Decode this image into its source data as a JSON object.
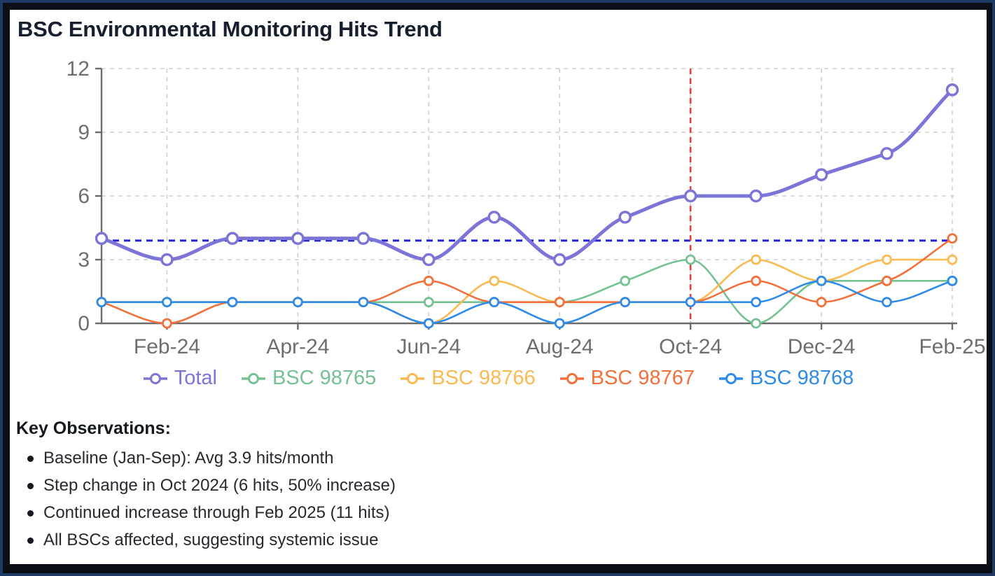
{
  "title": "BSC Environmental Monitoring Hits Trend",
  "frame_colors": {
    "outer_border": "#1f3a63",
    "inner_band": "#0a0e16",
    "card_background": "#ffffff"
  },
  "chart_data": {
    "type": "line",
    "title": "BSC Environmental Monitoring Hits Trend",
    "x": [
      "Jan-24",
      "Feb-24",
      "Mar-24",
      "Apr-24",
      "May-24",
      "Jun-24",
      "Jul-24",
      "Aug-24",
      "Sep-24",
      "Oct-24",
      "Nov-24",
      "Dec-24",
      "Jan-25",
      "Feb-25"
    ],
    "x_tick_labels": [
      "Feb-24",
      "Apr-24",
      "Jun-24",
      "Aug-24",
      "Oct-24",
      "Dec-24",
      "Feb-25"
    ],
    "ylim": [
      0,
      12
    ],
    "yticks": [
      0,
      3,
      6,
      9,
      12
    ],
    "grid": true,
    "legend_position": "bottom",
    "curve": "monotone-smooth",
    "axis_color": "#6b6b6b",
    "tick_label_color": "#6e6e6e",
    "gridline_color": "#cfcfcf",
    "series": [
      {
        "name": "Total",
        "color": "#7c74d6",
        "line_width": 5,
        "marker_radius": 7.5,
        "marker_stroke": 3.5,
        "values": [
          4,
          3,
          4,
          4,
          4,
          3,
          5,
          3,
          5,
          6,
          6,
          7,
          8,
          11
        ]
      },
      {
        "name": "BSC 98765",
        "color": "#74c193",
        "line_width": 2.6,
        "marker_radius": 6,
        "marker_stroke": 2.8,
        "values": [
          1,
          1,
          1,
          1,
          1,
          1,
          1,
          1,
          2,
          3,
          0,
          2,
          2,
          2
        ]
      },
      {
        "name": "BSC 98766",
        "color": "#fbb952",
        "line_width": 2.6,
        "marker_radius": 6,
        "marker_stroke": 2.8,
        "values": [
          1,
          1,
          1,
          1,
          1,
          0,
          2,
          1,
          1,
          1,
          3,
          2,
          3,
          3
        ]
      },
      {
        "name": "BSC 98767",
        "color": "#f3703b",
        "line_width": 2.6,
        "marker_radius": 6,
        "marker_stroke": 2.8,
        "values": [
          1,
          0,
          1,
          1,
          1,
          2,
          1,
          1,
          1,
          1,
          2,
          1,
          2,
          4
        ]
      },
      {
        "name": "BSC 98768",
        "color": "#2e8be9",
        "line_width": 2.6,
        "marker_radius": 6,
        "marker_stroke": 2.8,
        "values": [
          1,
          1,
          1,
          1,
          1,
          0,
          1,
          0,
          1,
          1,
          1,
          2,
          1,
          2
        ]
      }
    ],
    "reference_lines": [
      {
        "name": "baseline-average",
        "type": "horizontal",
        "value": 3.9,
        "color": "#2222e0",
        "style": "dashed"
      },
      {
        "name": "step-change",
        "type": "vertical",
        "x": "Oct-24",
        "color": "#e8413a",
        "style": "dashed"
      }
    ]
  },
  "observations": {
    "heading": "Key Observations:",
    "items": [
      "Baseline (Jan-Sep): Avg 3.9 hits/month",
      "Step change in Oct 2024 (6 hits, 50% increase)",
      "Continued increase through Feb 2025 (11 hits)",
      "All BSCs affected, suggesting systemic issue"
    ]
  }
}
